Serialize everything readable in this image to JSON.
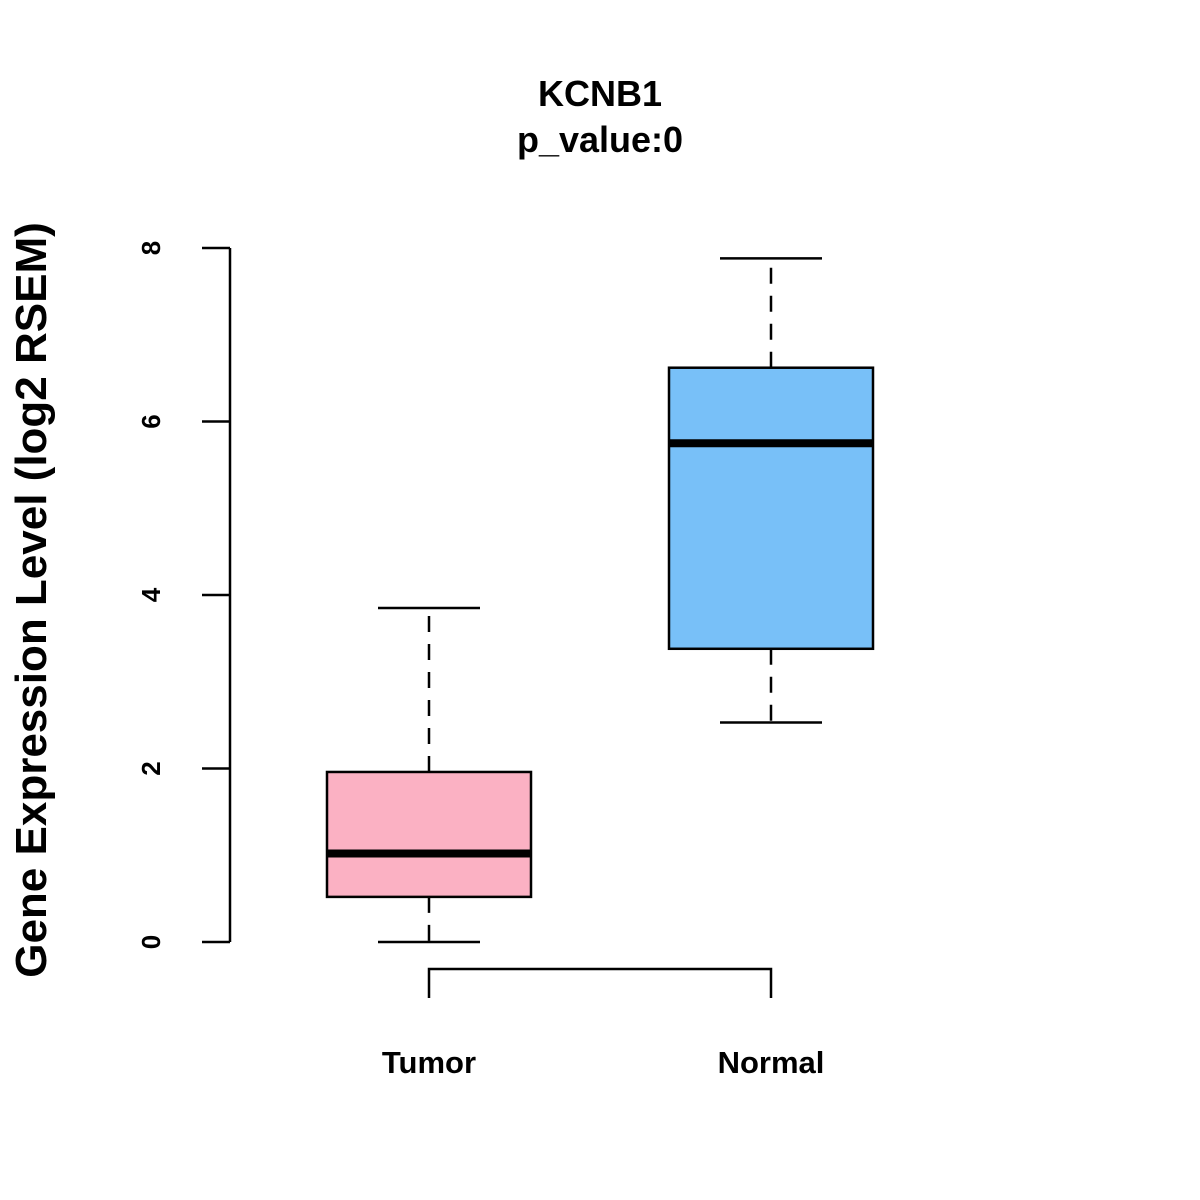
{
  "chart_data": {
    "type": "boxplot",
    "title": "KCNB1",
    "subtitle": "p_value:0",
    "xlabel": "",
    "ylabel": "Gene Expression Level (log2 RSEM)",
    "ylim": [
      0,
      8
    ],
    "yticks": [
      0,
      2,
      4,
      6,
      8
    ],
    "grid": false,
    "legend": "none",
    "categories": [
      "Tumor",
      "Normal"
    ],
    "series": [
      {
        "name": "Tumor",
        "color": "#FBB1C3",
        "whisker_low": 0.0,
        "q1": 0.52,
        "median": 1.02,
        "q3": 1.96,
        "whisker_high": 3.85
      },
      {
        "name": "Normal",
        "color": "#78C0F8",
        "whisker_low": 2.53,
        "q1": 3.38,
        "median": 5.75,
        "q3": 6.62,
        "whisker_high": 7.88
      }
    ],
    "comparison_bracket": {
      "from": "Tumor",
      "to": "Normal"
    }
  }
}
